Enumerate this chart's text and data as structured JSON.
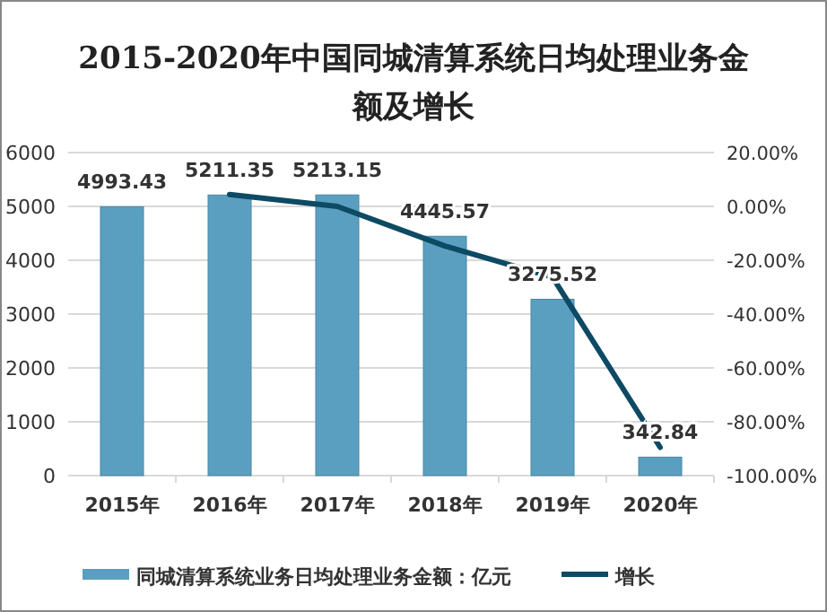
{
  "chart_data": {
    "type": "bar",
    "title": "2015-2020年中国同城清算系统日均处理业务金额及增长",
    "categories": [
      "2015年",
      "2016年",
      "2017年",
      "2018年",
      "2019年",
      "2020年"
    ],
    "series": [
      {
        "name": "同城清算系统业务日均处理业务金额：亿元",
        "color": "#5b9fc0",
        "values": [
          4993.43,
          5211.35,
          5213.15,
          4445.57,
          3275.52,
          342.84
        ],
        "value_labels": [
          "4993.43",
          "5211.35",
          "5213.15",
          "4445.57",
          "3275.52",
          "342.84"
        ]
      },
      {
        "name": "增长",
        "type": "line",
        "axis": "y2",
        "color": "#0d4a63",
        "values": [
          null,
          4.4,
          0.0,
          -14.7,
          -26.3,
          -89.5
        ]
      }
    ],
    "ylim": [
      0,
      6000
    ],
    "yticks": [
      0,
      1000,
      2000,
      3000,
      4000,
      5000,
      6000
    ],
    "y2lim": [
      -100,
      20
    ],
    "y2ticks": [
      {
        "value": -100,
        "label": "-100.00%"
      },
      {
        "value": -80,
        "label": "-80.00%"
      },
      {
        "value": -60,
        "label": "-60.00%"
      },
      {
        "value": -40,
        "label": "-40.00%"
      },
      {
        "value": -20,
        "label": "-20.00%"
      },
      {
        "value": 0,
        "label": "0.00%"
      },
      {
        "value": 20,
        "label": "20.00%"
      }
    ],
    "grid": "y",
    "legend": "bottom"
  }
}
